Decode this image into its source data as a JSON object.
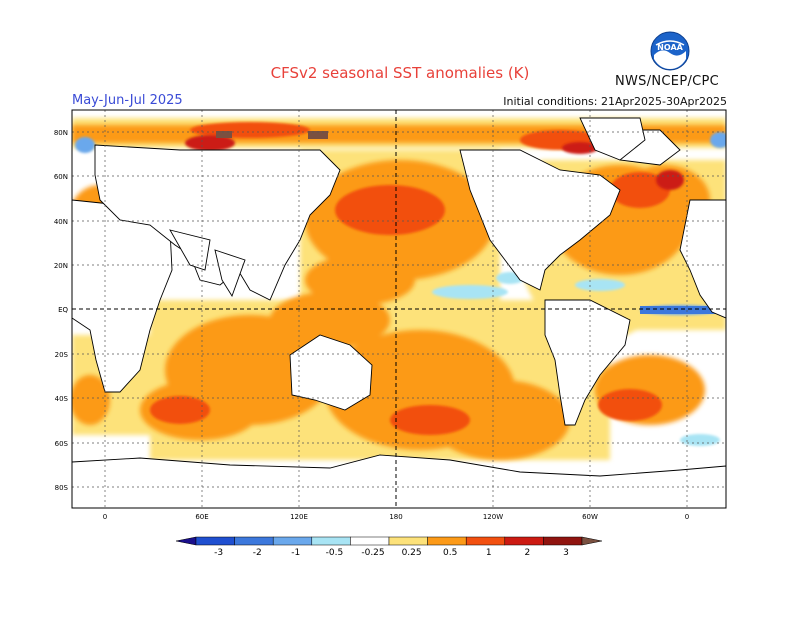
{
  "header": {
    "title": "CFSv2 seasonal SST anomalies (K)",
    "season": "May-Jun-Jul 2025",
    "initial_conditions": "Initial conditions: 21Apr2025-30Apr2025",
    "agency": "NWS/NCEP/CPC",
    "logo_text": "NOAA"
  },
  "map": {
    "type": "global SST anomaly forecast map",
    "lat_labels": [
      "80N",
      "60N",
      "40N",
      "20N",
      "EQ",
      "20S",
      "40S",
      "60S",
      "80S"
    ],
    "lon_labels": [
      "0",
      "60E",
      "120E",
      "180",
      "120W",
      "60W",
      "0"
    ]
  },
  "colorbar": {
    "tick_labels": [
      "-3",
      "-2",
      "-1",
      "-0.5",
      "-0.25",
      "0.25",
      "0.5",
      "1",
      "2",
      "3"
    ],
    "colors": [
      "#1a0f8c",
      "#1f4fd0",
      "#3c78dc",
      "#6aa8ec",
      "#a8e4f4",
      "#ffffff",
      "#fde27a",
      "#fc9a18",
      "#f25010",
      "#cc1a12",
      "#90140f",
      "#7a5040"
    ]
  }
}
